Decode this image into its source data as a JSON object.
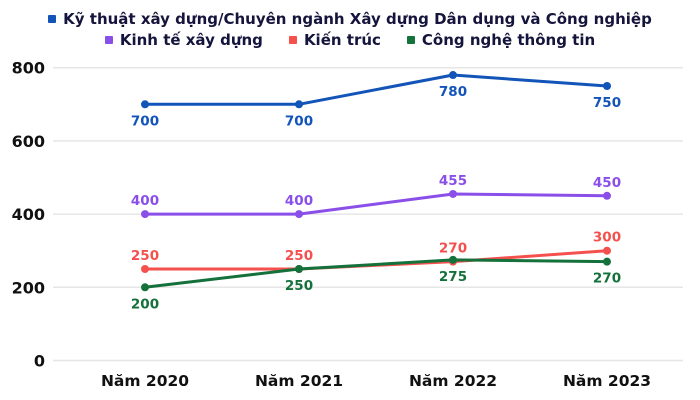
{
  "chart_data": {
    "type": "line",
    "x": [
      "Năm 2020",
      "Năm 2021",
      "Năm 2022",
      "Năm 2023"
    ],
    "series": [
      {
        "name": "Kỹ thuật xây dựng/Chuyên ngành Xây dựng Dân dụng và Công nghiệp",
        "color": "#1254b8",
        "values": [
          700,
          700,
          780,
          750
        ],
        "label_position": "below"
      },
      {
        "name": "Kinh tế xây dựng",
        "color": "#8b4fe9",
        "values": [
          400,
          400,
          455,
          450
        ],
        "label_position": "above"
      },
      {
        "name": "Kiến trúc",
        "color": "#f4514e",
        "values": [
          250,
          250,
          270,
          300
        ],
        "label_position": "above"
      },
      {
        "name": "Công nghệ thông tin",
        "color": "#15713b",
        "values": [
          200,
          250,
          275,
          270
        ],
        "label_position": "below"
      }
    ],
    "y_ticks": [
      0,
      200,
      400,
      600,
      800
    ],
    "ylim": [
      0,
      800
    ],
    "grid": "horizontal",
    "gridline_color": "#e6e6e6",
    "legend_position": "top",
    "data_labels": true,
    "title": "",
    "xlabel": "",
    "ylabel": ""
  }
}
